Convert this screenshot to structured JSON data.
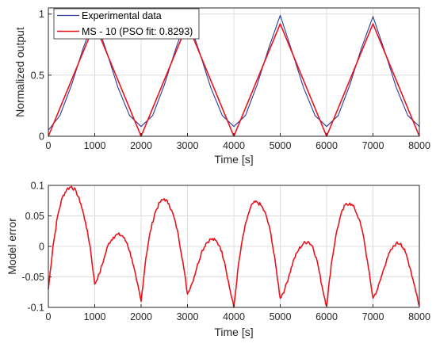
{
  "chart_data": [
    {
      "type": "line",
      "xlabel": "Time [s]",
      "ylabel": "Normalized output",
      "xlim": [
        0,
        8000
      ],
      "ylim": [
        0,
        1.05
      ],
      "xticks": [
        0,
        1000,
        2000,
        3000,
        4000,
        5000,
        6000,
        7000,
        8000
      ],
      "xtick_labels": [
        "0",
        "1000",
        "2000",
        "3000",
        "4000",
        "5000",
        "6000",
        "7000",
        "8000"
      ],
      "yticks": [
        0,
        0.5,
        1
      ],
      "ytick_labels": [
        "0",
        "0.5",
        "1"
      ],
      "grid": true,
      "legend_position": "top-left",
      "series": [
        {
          "name": "Experimental data",
          "color": "#2b3a9c",
          "x": [
            0,
            250,
            500,
            750,
            1000,
            1250,
            1500,
            1750,
            2000,
            2250,
            2500,
            2750,
            3000,
            3250,
            3500,
            3750,
            4000,
            4250,
            4500,
            4750,
            5000,
            5250,
            5500,
            5750,
            6000,
            6250,
            6500,
            6750,
            7000,
            7250,
            7500,
            7750,
            8000
          ],
          "y": [
            0.05,
            0.17,
            0.42,
            0.72,
            0.98,
            0.7,
            0.4,
            0.17,
            0.08,
            0.17,
            0.42,
            0.72,
            0.98,
            0.7,
            0.4,
            0.17,
            0.08,
            0.17,
            0.42,
            0.72,
            0.99,
            0.7,
            0.4,
            0.17,
            0.08,
            0.17,
            0.42,
            0.72,
            0.98,
            0.7,
            0.4,
            0.17,
            0.08
          ]
        },
        {
          "name": "MS - 10 (PSO fit: 0.8293)",
          "color": "#e8131b",
          "x": [
            0,
            1000,
            2000,
            3000,
            4000,
            5000,
            6000,
            7000,
            8000
          ],
          "y": [
            0,
            0.92,
            0,
            0.92,
            0,
            0.92,
            0,
            0.92,
            0
          ]
        }
      ]
    },
    {
      "type": "line",
      "xlabel": "Time [s]",
      "ylabel": "Model error",
      "xlim": [
        0,
        8000
      ],
      "ylim": [
        -0.1,
        0.1
      ],
      "xticks": [
        0,
        1000,
        2000,
        3000,
        4000,
        5000,
        6000,
        7000,
        8000
      ],
      "xtick_labels": [
        "0",
        "1000",
        "2000",
        "3000",
        "4000",
        "5000",
        "6000",
        "7000",
        "8000"
      ],
      "yticks": [
        -0.1,
        -0.05,
        0,
        0.05,
        0.1
      ],
      "ytick_labels": [
        "-0.1",
        "-0.05",
        "0",
        "0.05",
        "0.1"
      ],
      "grid": true,
      "series": [
        {
          "color": "#e8131b",
          "x": [
            0,
            100,
            200,
            300,
            400,
            500,
            600,
            700,
            800,
            900,
            1000,
            1100,
            1200,
            1300,
            1400,
            1500,
            1600,
            1700,
            1800,
            1900,
            2000,
            2100,
            2200,
            2300,
            2400,
            2500,
            2600,
            2700,
            2800,
            2900,
            3000,
            3100,
            3200,
            3300,
            3400,
            3500,
            3600,
            3700,
            3800,
            3900,
            4000,
            4100,
            4200,
            4300,
            4400,
            4500,
            4600,
            4700,
            4800,
            4900,
            5000,
            5100,
            5200,
            5300,
            5400,
            5500,
            5600,
            5700,
            5800,
            5900,
            6000,
            6100,
            6200,
            6300,
            6400,
            6500,
            6600,
            6700,
            6800,
            6900,
            7000,
            7100,
            7200,
            7300,
            7400,
            7500,
            7600,
            7700,
            7800,
            7900,
            8000
          ],
          "y": [
            -0.07,
            0.0,
            0.05,
            0.08,
            0.094,
            0.098,
            0.09,
            0.07,
            0.04,
            0.0,
            -0.062,
            -0.045,
            -0.02,
            0.005,
            0.015,
            0.02,
            0.017,
            0.005,
            -0.02,
            -0.055,
            -0.09,
            -0.02,
            0.025,
            0.055,
            0.072,
            0.078,
            0.07,
            0.05,
            0.02,
            -0.025,
            -0.078,
            -0.06,
            -0.035,
            -0.01,
            0.005,
            0.012,
            0.01,
            0.0,
            -0.025,
            -0.065,
            -0.1,
            -0.03,
            0.018,
            0.05,
            0.07,
            0.073,
            0.066,
            0.05,
            0.02,
            -0.03,
            -0.085,
            -0.07,
            -0.045,
            -0.02,
            -0.005,
            0.005,
            0.008,
            0.0,
            -0.025,
            -0.065,
            -0.098,
            -0.03,
            0.018,
            0.05,
            0.068,
            0.071,
            0.063,
            0.045,
            0.015,
            -0.035,
            -0.085,
            -0.07,
            -0.045,
            -0.02,
            -0.005,
            0.005,
            0.005,
            -0.01,
            -0.035,
            -0.065,
            -0.098
          ]
        }
      ]
    }
  ]
}
